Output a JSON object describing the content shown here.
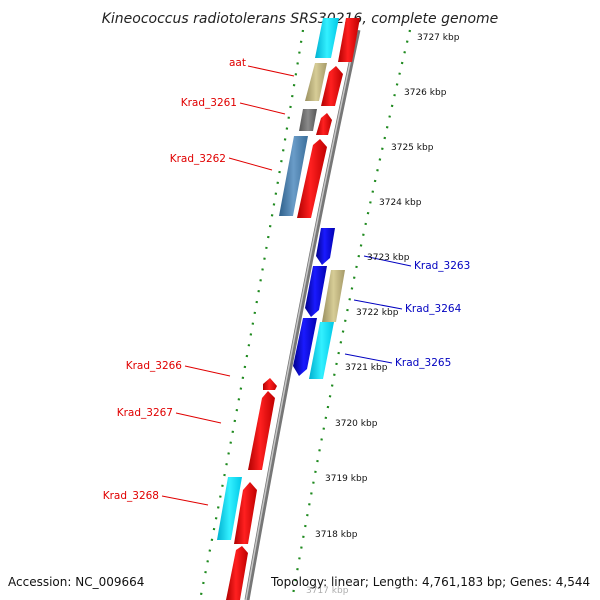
{
  "title": "Kineococcus radiotolerans SRS30216, complete genome",
  "footer": {
    "accession": "Accession: NC_009664",
    "summary": "Topology: linear; Length: 4,761,183 bp; Genes: 4,544"
  },
  "scale_labels": [
    "3727 kbp",
    "3726 kbp",
    "3725 kbp",
    "3724 kbp",
    "3723 kbp",
    "3722 kbp",
    "3721 kbp",
    "3720 kbp",
    "3719 kbp",
    "3718 kbp",
    "3717 kbp"
  ],
  "gene_labels": {
    "aat": "aat",
    "krad_3261": "Krad_3261",
    "krad_3262": "Krad_3262",
    "krad_3263": "Krad_3263",
    "krad_3264": "Krad_3264",
    "krad_3265": "Krad_3265",
    "krad_3266": "Krad_3266",
    "krad_3267": "Krad_3267",
    "krad_3268": "Krad_3268"
  },
  "colors": {
    "forward_label": "#e00000",
    "reverse_label": "#0000c0",
    "backbone": "#888888",
    "scale_ticks": "#1f8a1f"
  }
}
